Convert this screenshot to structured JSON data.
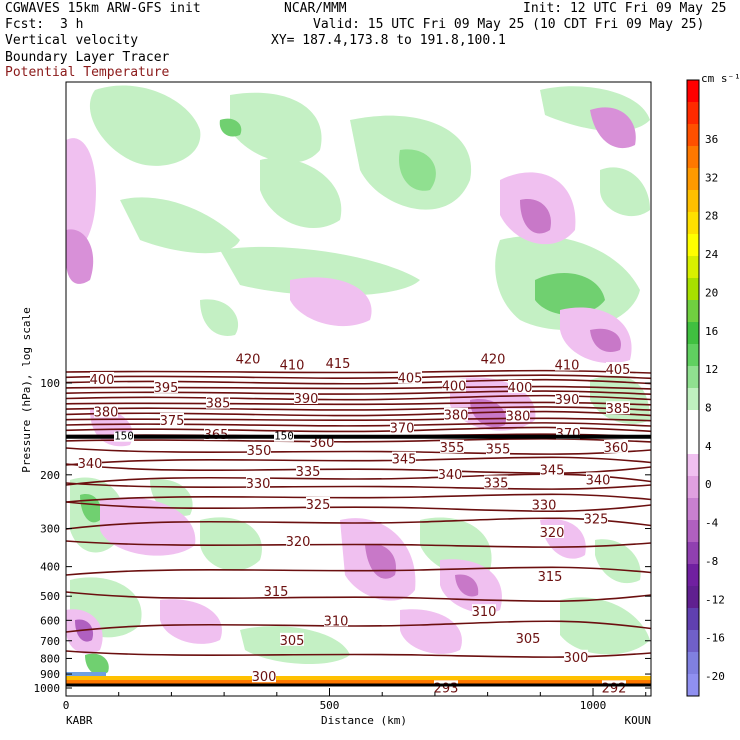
{
  "header": {
    "model": "CGWAVES 15km ARW-GFS init",
    "org": "NCAR/MMM",
    "init": "Init: 12 UTC Fri 09 May 25",
    "fcst_label": "Fcst:",
    "fcst_value": "3 h",
    "valid": "Valid: 15 UTC Fri 09 May 25 (10 CDT Fri 09 May 25)",
    "field1": "Vertical velocity",
    "field2": "Boundary Layer Tracer",
    "field3": "Potential Temperature",
    "xy": "XY= 187.4,173.8 to 191.8,100.1",
    "field3_color": "#8b1a1a"
  },
  "chart_data": {
    "type": "cross-section",
    "ylabel": "Pressure (hPa), log scale",
    "xlabel": "Distance (km)",
    "x_ticks": [
      "0",
      "500",
      "1000"
    ],
    "x_tick_values": [
      0,
      500,
      1000
    ],
    "xlim": [
      0,
      1110
    ],
    "y_ticks": [
      "100",
      "200",
      "300",
      "400",
      "500",
      "600",
      "700",
      "800",
      "900",
      "1000"
    ],
    "y_tick_values": [
      100,
      200,
      300,
      400,
      500,
      600,
      700,
      800,
      900,
      1000
    ],
    "yscale": "log",
    "left_station": "KABR",
    "right_station": "KOUN",
    "colorbar": {
      "unit": "cm s⁻¹",
      "labels": [
        "36",
        "32",
        "28",
        "24",
        "20",
        "16",
        "12",
        "8",
        "4",
        "0",
        "-4",
        "-8",
        "-12",
        "-16",
        "-20"
      ],
      "colors": [
        "#ff0000",
        "#ff2a00",
        "#ff5000",
        "#ff7800",
        "#ff9a00",
        "#ffc000",
        "#ffe000",
        "#ffff00",
        "#d8f000",
        "#a8e000",
        "#70d040",
        "#40c040",
        "#60d060",
        "#90e090",
        "#c0f0c0",
        "#ffffff",
        "#ffffff",
        "#f0c0f0",
        "#e0a0e0",
        "#c880d0",
        "#b060c0",
        "#9040b0",
        "#7020a0",
        "#602090",
        "#6040b0",
        "#7060c8",
        "#8080e0",
        "#9090f0"
      ]
    },
    "theta_labels": [
      {
        "text": "420",
        "x": 248,
        "p": 83
      },
      {
        "text": "410",
        "x": 292,
        "p": 87
      },
      {
        "text": "415",
        "x": 338,
        "p": 86
      },
      {
        "text": "420",
        "x": 493,
        "p": 83
      },
      {
        "text": "410",
        "x": 567,
        "p": 87
      },
      {
        "text": "405",
        "x": 618,
        "p": 90
      },
      {
        "text": "400",
        "x": 102,
        "p": 97
      },
      {
        "text": "395",
        "x": 166,
        "p": 103
      },
      {
        "text": "405",
        "x": 410,
        "p": 96
      },
      {
        "text": "400",
        "x": 454,
        "p": 102
      },
      {
        "text": "400",
        "x": 520,
        "p": 103
      },
      {
        "text": "390",
        "x": 306,
        "p": 112
      },
      {
        "text": "385",
        "x": 218,
        "p": 116
      },
      {
        "text": "390",
        "x": 567,
        "p": 113
      },
      {
        "text": "385",
        "x": 618,
        "p": 121
      },
      {
        "text": "380",
        "x": 106,
        "p": 124
      },
      {
        "text": "375",
        "x": 172,
        "p": 132
      },
      {
        "text": "380",
        "x": 456,
        "p": 127
      },
      {
        "text": "380",
        "x": 518,
        "p": 128
      },
      {
        "text": "370",
        "x": 402,
        "p": 140
      },
      {
        "text": "365",
        "x": 216,
        "p": 147
      },
      {
        "text": "360",
        "x": 322,
        "p": 156
      },
      {
        "text": "370",
        "x": 568,
        "p": 146
      },
      {
        "text": "350",
        "x": 259,
        "p": 166
      },
      {
        "text": "355",
        "x": 452,
        "p": 162
      },
      {
        "text": "355",
        "x": 498,
        "p": 164
      },
      {
        "text": "360",
        "x": 616,
        "p": 162
      },
      {
        "text": "340",
        "x": 90,
        "p": 183
      },
      {
        "text": "345",
        "x": 404,
        "p": 177
      },
      {
        "text": "335",
        "x": 308,
        "p": 194
      },
      {
        "text": "340",
        "x": 450,
        "p": 199
      },
      {
        "text": "345",
        "x": 552,
        "p": 192
      },
      {
        "text": "330",
        "x": 258,
        "p": 213
      },
      {
        "text": "335",
        "x": 496,
        "p": 212
      },
      {
        "text": "340",
        "x": 598,
        "p": 207
      },
      {
        "text": "325",
        "x": 318,
        "p": 249
      },
      {
        "text": "330",
        "x": 544,
        "p": 250
      },
      {
        "text": "325",
        "x": 596,
        "p": 278
      },
      {
        "text": "320",
        "x": 298,
        "p": 330
      },
      {
        "text": "320",
        "x": 552,
        "p": 308
      },
      {
        "text": "315",
        "x": 550,
        "p": 430
      },
      {
        "text": "315",
        "x": 276,
        "p": 480
      },
      {
        "text": "310",
        "x": 336,
        "p": 600
      },
      {
        "text": "310",
        "x": 484,
        "p": 560
      },
      {
        "text": "305",
        "x": 292,
        "p": 695
      },
      {
        "text": "305",
        "x": 528,
        "p": 685
      },
      {
        "text": "300",
        "x": 576,
        "p": 790
      },
      {
        "text": "300",
        "x": 264,
        "p": 915
      },
      {
        "text": "293",
        "x": 446,
        "p": 995
      },
      {
        "text": "292",
        "x": 614,
        "p": 995
      }
    ],
    "tropopause_markers": [
      {
        "text": "150",
        "x": 124
      },
      {
        "text": "150",
        "x": 284
      }
    ],
    "tropopause_p": 150
  }
}
